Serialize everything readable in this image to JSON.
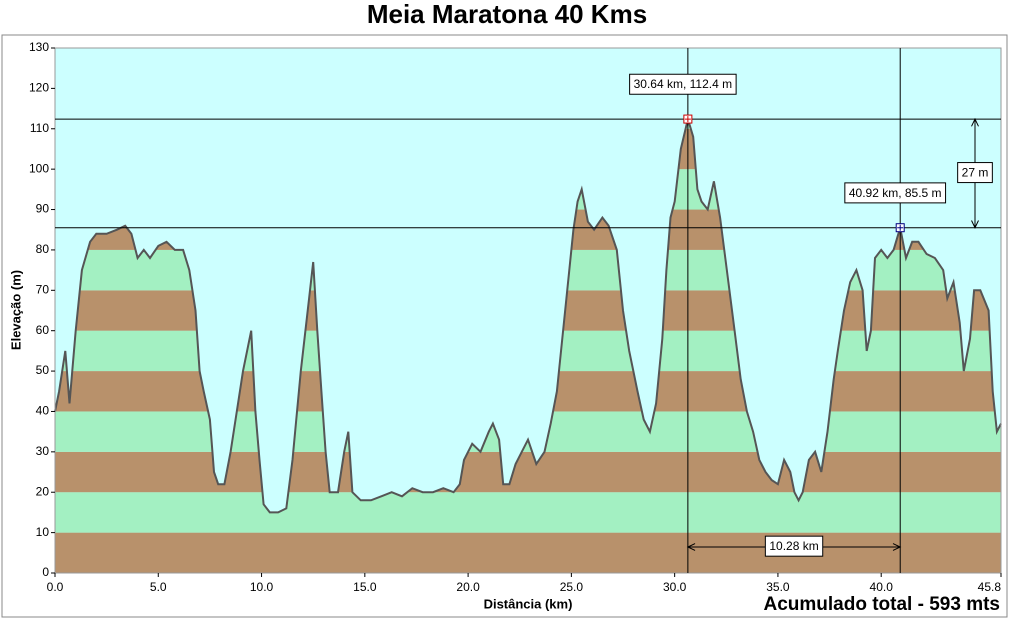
{
  "chart_data": {
    "type": "area",
    "title": "Meia Maratona 40 Kms",
    "xlabel": "Distância   (km)",
    "ylabel": "Elevação (m)",
    "footer": "Acumulado total - 593 mts",
    "xlim": [
      0,
      45.8
    ],
    "ylim": [
      0,
      130
    ],
    "xticks": [
      {
        "value": 0,
        "label": "0.0"
      },
      {
        "value": 5,
        "label": "5.0"
      },
      {
        "value": 10,
        "label": "10.0"
      },
      {
        "value": 15,
        "label": "15.0"
      },
      {
        "value": 20,
        "label": "20.0"
      },
      {
        "value": 25,
        "label": "25.0"
      },
      {
        "value": 30,
        "label": "30.0"
      },
      {
        "value": 35,
        "label": "35.0"
      },
      {
        "value": 40,
        "label": "40.0"
      },
      45.8
    ],
    "yticks": [
      0,
      10,
      20,
      30,
      40,
      50,
      60,
      70,
      80,
      90,
      100,
      110,
      120,
      130
    ],
    "color": "#555555",
    "band_colors": [
      "#b8916b",
      "#a3f0c2"
    ],
    "background": "#ccffff",
    "x": [
      0,
      0.2,
      0.5,
      0.7,
      1.0,
      1.3,
      1.7,
      2.0,
      2.5,
      3.0,
      3.4,
      3.7,
      4.0,
      4.3,
      4.6,
      5.0,
      5.4,
      5.8,
      6.2,
      6.5,
      6.8,
      7.0,
      7.2,
      7.5,
      7.7,
      7.9,
      8.2,
      8.5,
      8.8,
      9.1,
      9.3,
      9.5,
      9.7,
      9.9,
      10.1,
      10.4,
      10.8,
      11.2,
      11.5,
      11.9,
      12.3,
      12.5,
      12.7,
      12.9,
      13.1,
      13.3,
      13.7,
      14.0,
      14.2,
      14.4,
      14.8,
      15.3,
      15.8,
      16.3,
      16.8,
      17.3,
      17.8,
      18.3,
      18.8,
      19.3,
      19.6,
      19.8,
      20.2,
      20.6,
      21.0,
      21.2,
      21.5,
      21.7,
      22.0,
      22.3,
      22.6,
      22.9,
      23.3,
      23.7,
      24.0,
      24.3,
      24.6,
      24.9,
      25.1,
      25.3,
      25.5,
      25.8,
      26.1,
      26.5,
      26.8,
      27.2,
      27.5,
      27.8,
      28.2,
      28.5,
      28.8,
      29.1,
      29.4,
      29.6,
      29.8,
      30.0,
      30.3,
      30.64,
      30.9,
      31.1,
      31.3,
      31.6,
      31.9,
      32.2,
      32.6,
      32.9,
      33.2,
      33.5,
      33.8,
      34.1,
      34.4,
      34.7,
      35.0,
      35.3,
      35.6,
      35.8,
      36.0,
      36.2,
      36.5,
      36.8,
      37.1,
      37.4,
      37.7,
      37.9,
      38.2,
      38.5,
      38.8,
      39.1,
      39.3,
      39.5,
      39.7,
      40.0,
      40.3,
      40.6,
      40.92,
      41.2,
      41.5,
      41.8,
      42.2,
      42.6,
      43.0,
      43.2,
      43.5,
      43.8,
      44.0,
      44.3,
      44.5,
      44.8,
      45.2,
      45.4,
      45.6,
      45.8
    ],
    "values": [
      40,
      45,
      55,
      42,
      60,
      75,
      82,
      84,
      84,
      85,
      86,
      84,
      78,
      80,
      78,
      81,
      82,
      80,
      80,
      75,
      65,
      50,
      45,
      38,
      25,
      22,
      22,
      30,
      40,
      50,
      55,
      60,
      40,
      28,
      17,
      15,
      15,
      16,
      28,
      50,
      68,
      77,
      60,
      45,
      30,
      20,
      20,
      30,
      35,
      20,
      18,
      18,
      19,
      20,
      19,
      21,
      20,
      20,
      21,
      20,
      22,
      28,
      32,
      30,
      35,
      37,
      33,
      22,
      22,
      27,
      30,
      33,
      27,
      30,
      37,
      45,
      60,
      75,
      85,
      92,
      95,
      87,
      85,
      88,
      86,
      80,
      65,
      55,
      45,
      38,
      35,
      42,
      58,
      75,
      88,
      92,
      105,
      112.4,
      108,
      95,
      92,
      90,
      97,
      88,
      72,
      60,
      48,
      40,
      35,
      28,
      25,
      23,
      22,
      28,
      25,
      20,
      18,
      20,
      28,
      30,
      25,
      35,
      48,
      55,
      65,
      72,
      75,
      70,
      55,
      60,
      78,
      80,
      78,
      80,
      85.5,
      78,
      82,
      82,
      79,
      78,
      75,
      68,
      72,
      62,
      50,
      58,
      70,
      70,
      65,
      45,
      35,
      37
    ],
    "markers": [
      {
        "x": 30.64,
        "y": 112.4,
        "label": "30.64 km, 112.4 m",
        "color": "#cc0000"
      },
      {
        "x": 40.92,
        "y": 85.5,
        "label": "40.92 km, 85.5 m",
        "color": "#000080"
      }
    ],
    "delta_y_label": "27 m",
    "delta_x_label": "10.28 km"
  }
}
